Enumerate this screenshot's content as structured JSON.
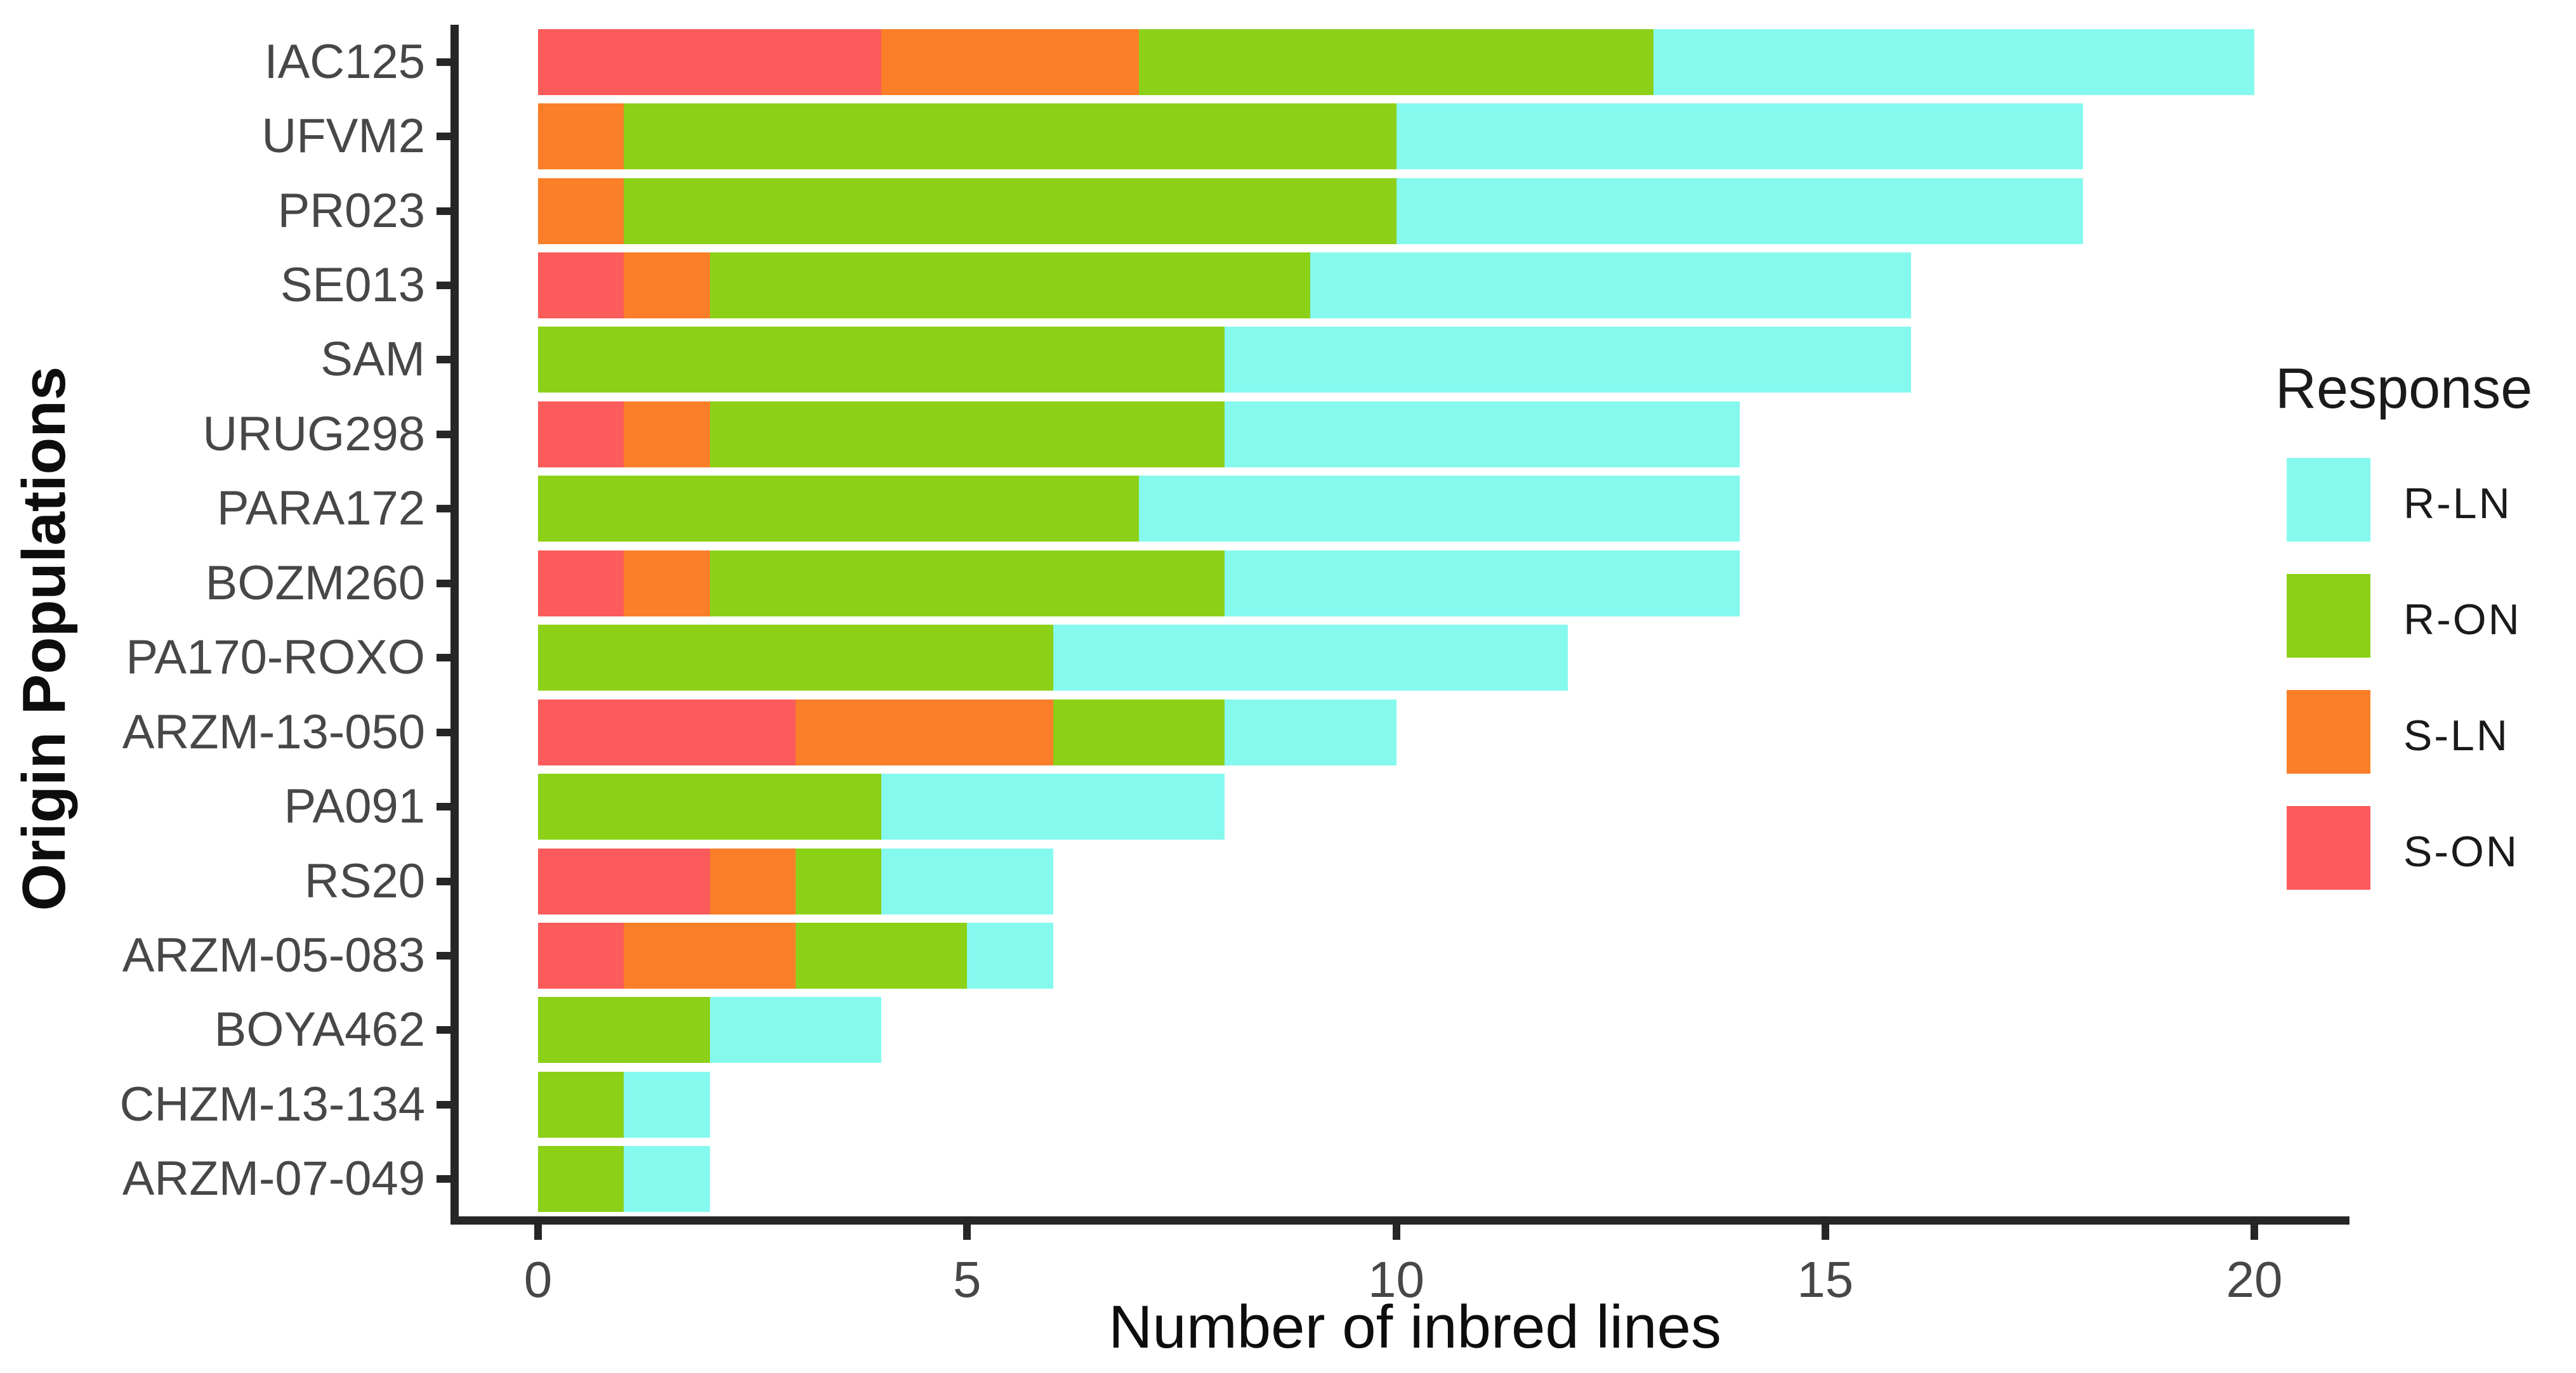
{
  "chart_data": {
    "type": "bar",
    "orientation": "horizontal",
    "stacked": true,
    "title": "",
    "xlabel": "Number of inbred lines",
    "ylabel": "Origin Populations",
    "xlim": [
      0,
      21
    ],
    "xticks": [
      0,
      5,
      10,
      15,
      20
    ],
    "grid": false,
    "background": "#ffffff",
    "axis_color": "#262626",
    "tick_label_color": "#474747",
    "categories": [
      "IAC125",
      "UFVM2",
      "PR023",
      "SE013",
      "SAM",
      "URUG298",
      "PARA172",
      "BOZM260",
      "PA170-ROXO",
      "ARZM-13-050",
      "PA091",
      "RS20",
      "ARZM-05-083",
      "BOYA462",
      "CHZM-13-134",
      "ARZM-07-049"
    ],
    "series": [
      {
        "name": "S-ON",
        "color": "#FB5B5B",
        "values": [
          4,
          0,
          0,
          1,
          0,
          1,
          0,
          1,
          0,
          3,
          0,
          2,
          1,
          0,
          0,
          0
        ]
      },
      {
        "name": "S-LN",
        "color": "#FB7E28",
        "values": [
          3,
          1,
          1,
          1,
          0,
          1,
          0,
          1,
          0,
          3,
          0,
          1,
          2,
          0,
          0,
          0
        ]
      },
      {
        "name": "R-ON",
        "color": "#8CD017",
        "values": [
          6,
          9,
          9,
          7,
          8,
          6,
          7,
          6,
          6,
          2,
          4,
          1,
          2,
          2,
          1,
          1
        ]
      },
      {
        "name": "R-LN",
        "color": "#86F9EF",
        "values": [
          7,
          8,
          8,
          7,
          8,
          6,
          7,
          6,
          6,
          2,
          4,
          2,
          1,
          2,
          1,
          1
        ]
      }
    ],
    "stack_order_left_to_right": [
      "S-ON",
      "S-LN",
      "R-ON",
      "R-LN"
    ],
    "totals": [
      20,
      18,
      18,
      16,
      16,
      14,
      14,
      14,
      12,
      10,
      8,
      6,
      6,
      4,
      2,
      2
    ],
    "legend": {
      "title": "Response",
      "position": "right",
      "entries_top_to_bottom": [
        "R-LN",
        "R-ON",
        "S-LN",
        "S-ON"
      ]
    }
  }
}
